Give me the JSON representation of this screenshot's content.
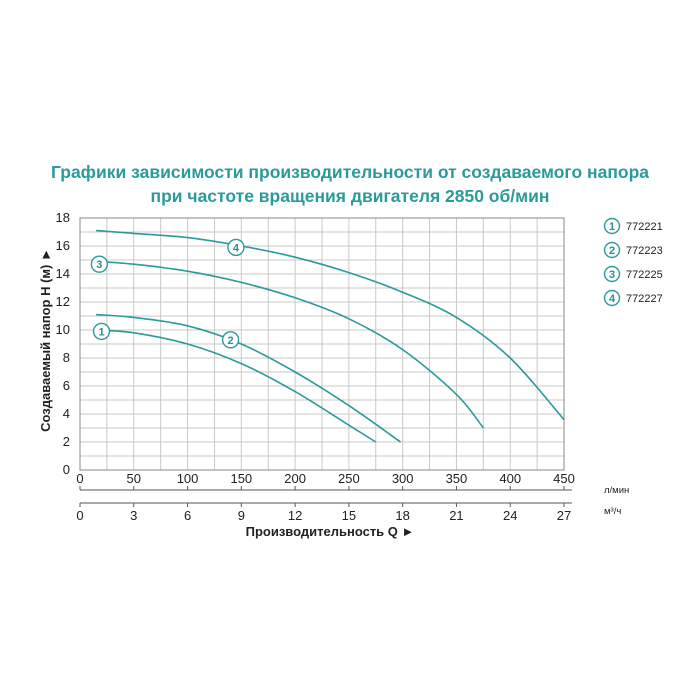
{
  "title_line1": "Графики зависимости производительности от создаваемого напора",
  "title_line2": "при частоте вращения двигателя 2850 об/мин",
  "colors": {
    "curve": "#2a9a9a",
    "grid": "#c8c8c8",
    "title": "#2a9a9a"
  },
  "chart_data": {
    "type": "line",
    "ylabel": "Создаваемый напор H (м) ►",
    "xlabel": "Производительность Q ►",
    "x_unit_top": "л/мин",
    "x_unit_bottom": "м³/ч",
    "xlim": [
      0,
      450
    ],
    "ylim": [
      0,
      18
    ],
    "x_ticks_lmin": [
      0,
      50,
      100,
      150,
      200,
      250,
      300,
      350,
      400,
      450
    ],
    "x_ticks_m3h": [
      0,
      3,
      6,
      9,
      12,
      15,
      18,
      21,
      24,
      27
    ],
    "y_ticks": [
      0,
      2,
      4,
      6,
      8,
      10,
      12,
      14,
      16,
      18
    ],
    "grid": true,
    "legend_position": "right",
    "series": [
      {
        "name": "772221",
        "marker": "1",
        "marker_x": 20,
        "marker_y": 9.9,
        "x": [
          15,
          50,
          100,
          150,
          200,
          250,
          275
        ],
        "y": [
          10.0,
          9.8,
          9.0,
          7.6,
          5.6,
          3.2,
          2.0
        ]
      },
      {
        "name": "772223",
        "marker": "2",
        "marker_x": 140,
        "marker_y": 9.3,
        "x": [
          15,
          50,
          100,
          150,
          200,
          250,
          298
        ],
        "y": [
          11.1,
          10.9,
          10.3,
          9.0,
          7.0,
          4.6,
          2.0
        ]
      },
      {
        "name": "772225",
        "marker": "3",
        "marker_x": 18,
        "marker_y": 14.7,
        "x": [
          15,
          50,
          100,
          150,
          200,
          250,
          300,
          350,
          375
        ],
        "y": [
          14.9,
          14.7,
          14.2,
          13.4,
          12.3,
          10.8,
          8.6,
          5.4,
          3.0
        ]
      },
      {
        "name": "772227",
        "marker": "4",
        "marker_x": 145,
        "marker_y": 15.9,
        "x": [
          15,
          50,
          100,
          150,
          200,
          250,
          300,
          350,
          400,
          450
        ],
        "y": [
          17.1,
          16.9,
          16.6,
          16.0,
          15.2,
          14.1,
          12.7,
          10.9,
          8.0,
          3.6
        ]
      }
    ]
  }
}
